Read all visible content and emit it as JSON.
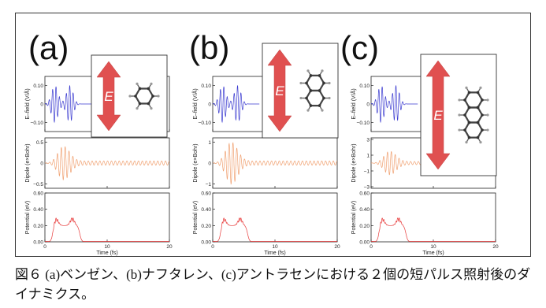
{
  "figure": {
    "caption": "図６ (a)ベンゼン、(b)ナフタレン、(c)アントラセンにおける２個の短パルス照射後のダイナミクス。"
  },
  "colors": {
    "efield": "#3a3ad0",
    "dipole": "#f0a070",
    "potential": "#e83a3a",
    "arrow": "#e05050",
    "axis": "#222222"
  },
  "panels": [
    {
      "label": "(a)",
      "molecule_icon": "benzene-icon",
      "arrow_label": "E",
      "rings": 1,
      "chart_data": [
        {
          "type": "line",
          "ylabel": "E–field (V/Å)",
          "ylim": [
            -0.15,
            0.15
          ],
          "yticks": [
            -0.1,
            0,
            0.1
          ],
          "ytick_labels": [
            "−0.10",
            "0",
            "0.10"
          ],
          "xlim": [
            0,
            20
          ],
          "series": [
            {
              "signal": "two-pulse oscillation",
              "x_range": [
                0,
                6
              ]
            }
          ]
        },
        {
          "type": "line",
          "ylabel": "Dipole (e×Bohr)",
          "ylim": [
            -0.6,
            0.6
          ],
          "yticks": [
            -0.5,
            0,
            0.5
          ],
          "ytick_labels": [
            "−0.5",
            "0",
            "0.5"
          ],
          "xlim": [
            0,
            20
          ],
          "series": [
            {
              "signal": "induced dipole",
              "peak": 0.4,
              "residual": 0.05
            }
          ]
        },
        {
          "type": "line",
          "ylabel": "Potential (eV)",
          "xlabel": "Time (fs)",
          "ylim": [
            0,
            0.6
          ],
          "yticks": [
            0,
            0.2,
            0.4,
            0.6
          ],
          "ytick_labels": [
            "0.00",
            "0.20",
            "0.40",
            "0.60"
          ],
          "xlim": [
            0,
            20
          ],
          "xticks": [
            0,
            10,
            20
          ],
          "xtick_labels": [
            "0",
            "10",
            "20"
          ],
          "series": [
            {
              "signal": "potential",
              "plateau": 0.2,
              "peak": 0.3
            }
          ]
        }
      ]
    },
    {
      "label": "(b)",
      "molecule_icon": "naphthalene-icon",
      "arrow_label": "E",
      "rings": 2,
      "chart_data": [
        {
          "type": "line",
          "ylabel": "E–field (V/Å)",
          "ylim": [
            -0.15,
            0.15
          ],
          "yticks": [
            -0.1,
            0,
            0.1
          ],
          "ytick_labels": [
            "−0.10",
            "0",
            "0.10"
          ],
          "xlim": [
            0,
            20
          ],
          "series": [
            {
              "signal": "two-pulse oscillation",
              "x_range": [
                0,
                6
              ]
            }
          ]
        },
        {
          "type": "line",
          "ylabel": "Dipole (e×Bohr)",
          "ylim": [
            -1.2,
            1.2
          ],
          "yticks": [
            -1,
            0,
            1
          ],
          "ytick_labels": [
            "−1",
            "0",
            "1"
          ],
          "xlim": [
            0,
            20
          ],
          "series": [
            {
              "signal": "induced dipole",
              "peak": 1.0,
              "residual": 0.1
            }
          ]
        },
        {
          "type": "line",
          "ylabel": "Potential (eV)",
          "xlabel": "Time (fs)",
          "ylim": [
            0,
            0.6
          ],
          "yticks": [
            0,
            0.2,
            0.4,
            0.6
          ],
          "ytick_labels": [
            "0.00",
            "0.20",
            "0.40",
            "0.60"
          ],
          "xlim": [
            0,
            20
          ],
          "xticks": [
            0,
            10,
            20
          ],
          "xtick_labels": [
            "0",
            "10",
            "20"
          ],
          "series": [
            {
              "signal": "potential",
              "plateau": 0.2,
              "peak": 0.3
            }
          ]
        }
      ]
    },
    {
      "label": "(c)",
      "molecule_icon": "anthracene-icon",
      "arrow_label": "E",
      "rings": 3,
      "chart_data": [
        {
          "type": "line",
          "ylabel": "E–field (V/Å)",
          "ylim": [
            -0.15,
            0.15
          ],
          "yticks": [
            -0.1,
            0,
            0.1
          ],
          "ytick_labels": [
            "−0.10",
            "0",
            "0.10"
          ],
          "xlim": [
            0,
            20
          ],
          "series": [
            {
              "signal": "two-pulse oscillation",
              "x_range": [
                0,
                6
              ]
            }
          ]
        },
        {
          "type": "line",
          "ylabel": "Dipole (e×Bohr)",
          "ylim": [
            -3.2,
            3.2
          ],
          "yticks": [
            -3,
            -1,
            1,
            3
          ],
          "ytick_labels": [
            "−3",
            "−1",
            "1",
            "3"
          ],
          "xlim": [
            0,
            20
          ],
          "series": [
            {
              "signal": "induced dipole",
              "peak": 1.5,
              "residual": 0.2
            }
          ]
        },
        {
          "type": "line",
          "ylabel": "Potential (eV)",
          "xlabel": "Time (fs)",
          "ylim": [
            0,
            0.6
          ],
          "yticks": [
            0,
            0.2,
            0.4,
            0.6
          ],
          "ytick_labels": [
            "0.00",
            "0.20",
            "0.40",
            "0.60"
          ],
          "xlim": [
            0,
            20
          ],
          "xticks": [
            0,
            10,
            20
          ],
          "xtick_labels": [
            "0",
            "10",
            "20"
          ],
          "series": [
            {
              "signal": "potential",
              "plateau": 0.2,
              "peak": 0.3
            }
          ]
        }
      ]
    }
  ]
}
